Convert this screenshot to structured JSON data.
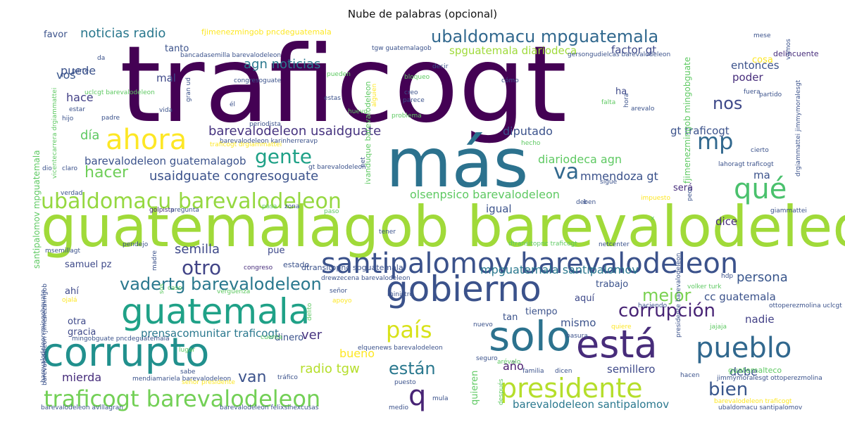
{
  "chart_data": {
    "type": "wordcloud",
    "title": "Nube de palabras (opcional)",
    "colormap": "viridis",
    "background": "#ffffff",
    "words": [
      {
        "text": "traficogt",
        "weight": 1.0,
        "color": "#440154"
      },
      {
        "text": "más",
        "weight": 0.62,
        "color": "#2c728e"
      },
      {
        "text": "guatemalagob barevalodeleon",
        "weight": 0.55,
        "color": "#a0da39"
      },
      {
        "text": "gobierno",
        "weight": 0.38,
        "color": "#3b528b"
      },
      {
        "text": "guatemala",
        "weight": 0.37,
        "color": "#1fa187"
      },
      {
        "text": "corrupto",
        "weight": 0.37,
        "color": "#21908d"
      },
      {
        "text": "solo",
        "weight": 0.37,
        "color": "#2c728e"
      },
      {
        "text": "está",
        "weight": 0.33,
        "color": "#472c7a"
      },
      {
        "text": "santipalomov barevalodeleon",
        "weight": 0.3,
        "color": "#3b528b"
      },
      {
        "text": "presidente",
        "weight": 0.3,
        "color": "#b5de2b"
      },
      {
        "text": "pueblo",
        "weight": 0.3,
        "color": "#31688e"
      },
      {
        "text": "ahora",
        "weight": 0.3,
        "color": "#fde725"
      },
      {
        "text": "traficogt barevalodeleon",
        "weight": 0.25,
        "color": "#73d056"
      },
      {
        "text": "mp",
        "weight": 0.25,
        "color": "#31688e"
      },
      {
        "text": "qué",
        "weight": 0.25,
        "color": "#4ac16d"
      },
      {
        "text": "país",
        "weight": 0.22,
        "color": "#d8e219"
      },
      {
        "text": "ubaldomacu barevalodeleon",
        "weight": 0.22,
        "color": "#95d840"
      },
      {
        "text": "va",
        "weight": 0.21,
        "color": "#31688e"
      },
      {
        "text": "gente",
        "weight": 0.21,
        "color": "#1fa187"
      },
      {
        "text": "q",
        "weight": 0.2,
        "color": "#482475"
      },
      {
        "text": "hacer",
        "weight": 0.18,
        "color": "#6ece58"
      },
      {
        "text": "corrupción",
        "weight": 0.18,
        "color": "#482475"
      },
      {
        "text": "están",
        "weight": 0.18,
        "color": "#2a788e"
      },
      {
        "text": "bien",
        "weight": 0.18,
        "color": "#39568c"
      },
      {
        "text": "ubaldomacu mpguatemala",
        "weight": 0.16,
        "color": "#31688e"
      },
      {
        "text": "otro",
        "weight": 0.16,
        "color": "#414487"
      },
      {
        "text": "vadertg barevalodeleon",
        "weight": 0.16,
        "color": "#2a788e"
      },
      {
        "text": "mejor",
        "weight": 0.16,
        "color": "#7ad151"
      },
      {
        "text": "nos",
        "weight": 0.16,
        "color": "#3e4989"
      },
      {
        "text": "usaidguate congresoguate",
        "weight": 0.13,
        "color": "#3b528b"
      },
      {
        "text": "barevalodeleon usaidguate",
        "weight": 0.13,
        "color": "#46337f"
      },
      {
        "text": "noticias radio",
        "weight": 0.12,
        "color": "#2a788e"
      },
      {
        "text": "agn noticias",
        "weight": 0.12,
        "color": "#2a788e"
      },
      {
        "text": "día",
        "weight": 0.12,
        "color": "#5ec962"
      },
      {
        "text": "semilla",
        "weight": 0.12,
        "color": "#3e4989"
      },
      {
        "text": "radio tgw",
        "weight": 0.12,
        "color": "#b5de2b"
      },
      {
        "text": "ver",
        "weight": 0.12,
        "color": "#46337f"
      },
      {
        "text": "van",
        "weight": 0.12,
        "color": "#3b528b"
      },
      {
        "text": "bueno",
        "weight": 0.1,
        "color": "#fde725"
      },
      {
        "text": "persona",
        "weight": 0.1,
        "color": "#39568c"
      },
      {
        "text": "mpguatemala santipalomov",
        "weight": 0.1,
        "color": "#2a788e"
      },
      {
        "text": "mierda",
        "weight": 0.1,
        "color": "#472d7b"
      },
      {
        "text": "vos",
        "weight": 0.1,
        "color": "#39568c"
      },
      {
        "text": "hace",
        "weight": 0.1,
        "color": "#424086"
      },
      {
        "text": "puede",
        "weight": 0.1,
        "color": "#3b528b"
      },
      {
        "text": "diputado",
        "weight": 0.09,
        "color": "#3b528b"
      },
      {
        "text": "diariodeca agn",
        "weight": 0.09,
        "color": "#5ec962"
      },
      {
        "text": "mmendoza gt",
        "weight": 0.09,
        "color": "#3b528b"
      },
      {
        "text": "olsenpsico barevalodeleon",
        "weight": 0.09,
        "color": "#5ec962"
      },
      {
        "text": "año",
        "weight": 0.09,
        "color": "#481b6d"
      },
      {
        "text": "debe",
        "weight": 0.09,
        "color": "#3b528b"
      },
      {
        "text": "prensacomunitar traficogt",
        "weight": 0.08,
        "color": "#2a788e"
      },
      {
        "text": "gt traficogt",
        "weight": 0.08,
        "color": "#3b528b"
      },
      {
        "text": "spguatemala diariodeca",
        "weight": 0.08,
        "color": "#9fda3a"
      },
      {
        "text": "factor gt",
        "weight": 0.08,
        "color": "#3e4989"
      },
      {
        "text": "mal",
        "weight": 0.08,
        "color": "#3e4989"
      },
      {
        "text": "cc guatemala",
        "weight": 0.08,
        "color": "#3b528b"
      },
      {
        "text": "mismo",
        "weight": 0.08,
        "color": "#3b528b"
      },
      {
        "text": "nadie",
        "weight": 0.07,
        "color": "#424086"
      },
      {
        "text": "semillero",
        "weight": 0.07,
        "color": "#3e4989"
      },
      {
        "text": "barevalodeleon guatemalagob",
        "weight": 0.07,
        "color": "#3b528b"
      },
      {
        "text": "barevalodeleon santipalomov",
        "weight": 0.07,
        "color": "#2a788e"
      },
      {
        "text": "ma",
        "weight": 0.07,
        "color": "#3b528b"
      },
      {
        "text": "dice",
        "weight": 0.07,
        "color": "#472d7b"
      },
      {
        "text": "igual",
        "weight": 0.07,
        "color": "#3b528b"
      },
      {
        "text": "poder",
        "weight": 0.07,
        "color": "#472d7b"
      },
      {
        "text": "entonces",
        "weight": 0.07,
        "color": "#3b528b"
      },
      {
        "text": "tanto",
        "weight": 0.07,
        "color": "#3b528b"
      },
      {
        "text": "favor",
        "weight": 0.07,
        "color": "#3b528b"
      },
      {
        "text": "gracia",
        "weight": 0.07,
        "color": "#3e4989"
      },
      {
        "text": "otra",
        "weight": 0.06,
        "color": "#3e4989"
      },
      {
        "text": "dinero",
        "weight": 0.06,
        "color": "#3b528b"
      },
      {
        "text": "será",
        "weight": 0.06,
        "color": "#472d7b"
      },
      {
        "text": "tan",
        "weight": 0.06,
        "color": "#3b528b"
      },
      {
        "text": "tiempo",
        "weight": 0.06,
        "color": "#3b528b"
      },
      {
        "text": "aquí",
        "weight": 0.06,
        "color": "#3e4989"
      },
      {
        "text": "trabajo",
        "weight": 0.06,
        "color": "#3b528b"
      },
      {
        "text": "samuel pz",
        "weight": 0.06,
        "color": "#3e4989"
      },
      {
        "text": "pue",
        "weight": 0.06,
        "color": "#3e4989"
      },
      {
        "text": "ha",
        "weight": 0.06,
        "color": "#3e4989"
      },
      {
        "text": "cosa",
        "weight": 0.06,
        "color": "#fde725"
      },
      {
        "text": "ahí",
        "weight": 0.06,
        "color": "#3e4989"
      },
      {
        "text": "guatemalteco",
        "weight": 0.05,
        "color": "#5ec962"
      },
      {
        "text": "fjimenezmingob pncdeguatemala",
        "weight": 0.05,
        "color": "#fde725"
      },
      {
        "text": "delincuente",
        "weight": 0.05,
        "color": "#472d7b"
      },
      {
        "text": "estado",
        "weight": 0.05,
        "color": "#3b528b"
      },
      {
        "text": "dtransitopnc spguatemala",
        "weight": 0.05,
        "color": "#3b528b"
      },
      {
        "text": "congreso",
        "weight": 0.04,
        "color": "#472d7b"
      },
      {
        "text": "elquenews barevalodeleon",
        "weight": 0.04,
        "color": "#3b528b"
      },
      {
        "text": "mingobguate pncdeguatemala",
        "weight": 0.04,
        "color": "#3b528b"
      },
      {
        "text": "barevalodeleon fjimenezmingob",
        "weight": 0.04,
        "color": "#3b528b"
      },
      {
        "text": "barevalodeleon mingobguate",
        "weight": 0.04,
        "color": "#3b528b"
      },
      {
        "text": "santipalomov mpguatemala",
        "weight": 0.04,
        "color": "#5ec962"
      },
      {
        "text": "presidente barevalodeleon",
        "weight": 0.04,
        "color": "#3b528b"
      },
      {
        "text": "fjimenezmingob mingobguate",
        "weight": 0.04,
        "color": "#5ec962"
      },
      {
        "text": "ivanduque barevalodeleon",
        "weight": 0.04,
        "color": "#5ec962"
      },
      {
        "text": "quieren",
        "weight": 0.04,
        "color": "#5ec962"
      },
      {
        "text": "mendiamariela barevalodeleon",
        "weight": 0.03,
        "color": "#3b528b"
      },
      {
        "text": "barevalodeleon avillagran",
        "weight": 0.03,
        "color": "#3b528b"
      },
      {
        "text": "barevalodeleon felixsinexcusas",
        "weight": 0.03,
        "color": "#3b528b"
      },
      {
        "text": "barevalodeleon karinherreravp",
        "weight": 0.03,
        "color": "#3b528b"
      },
      {
        "text": "bancadasemilla barevalodeleon",
        "weight": 0.03,
        "color": "#3b528b"
      },
      {
        "text": "gersongudielcas barevalodeleon",
        "weight": 0.03,
        "color": "#3b528b"
      },
      {
        "text": "tgw guatemalagob",
        "weight": 0.03,
        "color": "#3b528b"
      },
      {
        "text": "traficogt drgiammattei",
        "weight": 0.03,
        "color": "#fde725"
      },
      {
        "text": "barevalodeleon traficogt",
        "weight": 0.03,
        "color": "#fde725"
      },
      {
        "text": "ubaldomacu santipalomov",
        "weight": 0.03,
        "color": "#3b528b"
      },
      {
        "text": "ottoperezmolina uclcgt",
        "weight": 0.03,
        "color": "#3b528b"
      },
      {
        "text": "jimmymoralesgt ottoperezmolina",
        "weight": 0.03,
        "color": "#3b528b"
      },
      {
        "text": "lahoragt traficogt",
        "weight": 0.03,
        "color": "#3b528b"
      },
      {
        "text": "dtransitopnc traficogt",
        "weight": 0.03,
        "color": "#5ec962"
      },
      {
        "text": "drewzecena barevalodeleon",
        "weight": 0.03,
        "color": "#3b528b"
      },
      {
        "text": "gt barevalodeleon",
        "weight": 0.03,
        "color": "#3b528b"
      },
      {
        "text": "uclcgt barevalodeleon",
        "weight": 0.03,
        "color": "#5ec962"
      },
      {
        "text": "vicentecarrera drgiammattei",
        "weight": 0.03,
        "color": "#5ec962"
      },
      {
        "text": "drgiammattei jimmymoralesgt",
        "weight": 0.03,
        "color": "#3b528b"
      },
      {
        "text": "señor presidente",
        "weight": 0.03,
        "color": "#fde725"
      },
      {
        "text": "periodista",
        "weight": 0.03,
        "color": "#3b528b"
      },
      {
        "text": "congresoguate",
        "weight": 0.03,
        "color": "#3b528b"
      },
      {
        "text": "cómo",
        "weight": 0.03,
        "color": "#3b528b"
      },
      {
        "text": "gran ud",
        "weight": 0.03,
        "color": "#3b528b"
      },
      {
        "text": "msemillagt",
        "weight": 0.03,
        "color": "#3b528b"
      },
      {
        "text": "golpista",
        "weight": 0.03,
        "color": "#472d7b"
      },
      {
        "text": "pregunta",
        "weight": 0.03,
        "color": "#3b528b"
      },
      {
        "text": "verdad",
        "weight": 0.03,
        "color": "#3b528b"
      },
      {
        "text": "vergüenza",
        "weight": 0.03,
        "color": "#5ec962"
      },
      {
        "text": "ministro",
        "weight": 0.03,
        "color": "#3b528b"
      },
      {
        "text": "sigue",
        "weight": 0.03,
        "color": "#3b528b"
      },
      {
        "text": "cierto",
        "weight": 0.03,
        "color": "#3b528b"
      },
      {
        "text": "hecho",
        "weight": 0.03,
        "color": "#5ec962"
      },
      {
        "text": "fuera",
        "weight": 0.03,
        "color": "#3b528b"
      },
      {
        "text": "partido",
        "weight": 0.03,
        "color": "#3b528b"
      },
      {
        "text": "deben",
        "weight": 0.03,
        "color": "#3b528b"
      },
      {
        "text": "impuesto",
        "weight": 0.03,
        "color": "#fde725"
      },
      {
        "text": "peor",
        "weight": 0.03,
        "color": "#3b528b"
      },
      {
        "text": "netcenter",
        "weight": 0.03,
        "color": "#3b528b"
      },
      {
        "text": "giammattei",
        "weight": 0.03,
        "color": "#3b528b"
      },
      {
        "text": "hdp",
        "weight": 0.03,
        "color": "#3b528b"
      },
      {
        "text": "volker turk",
        "weight": 0.03,
        "color": "#5ec962"
      },
      {
        "text": "haciendo",
        "weight": 0.03,
        "color": "#3b528b"
      },
      {
        "text": "jajaja",
        "weight": 0.03,
        "color": "#5ec962"
      },
      {
        "text": "quiere",
        "weight": 0.03,
        "color": "#fde725"
      },
      {
        "text": "basura",
        "weight": 0.03,
        "color": "#3b528b"
      },
      {
        "text": "nuevo",
        "weight": 0.03,
        "color": "#3b528b"
      },
      {
        "text": "seguro",
        "weight": 0.03,
        "color": "#3b528b"
      },
      {
        "text": "familia",
        "weight": 0.03,
        "color": "#3b528b"
      },
      {
        "text": "dicen",
        "weight": 0.03,
        "color": "#3b528b"
      },
      {
        "text": "hacen",
        "weight": 0.03,
        "color": "#3b528b"
      },
      {
        "text": "sabe",
        "weight": 0.03,
        "color": "#3b528b"
      },
      {
        "text": "tráfico",
        "weight": 0.03,
        "color": "#3b528b"
      },
      {
        "text": "puesto",
        "weight": 0.03,
        "color": "#3b528b"
      },
      {
        "text": "mula",
        "weight": 0.03,
        "color": "#3b528b"
      },
      {
        "text": "medio",
        "weight": 0.03,
        "color": "#3b528b"
      },
      {
        "text": "después",
        "weight": 0.03,
        "color": "#5ec962"
      },
      {
        "text": "arévalo",
        "weight": 0.03,
        "color": "#5ec962"
      },
      {
        "text": "cuenta",
        "weight": 0.03,
        "color": "#5ec962"
      },
      {
        "text": "lugar",
        "weight": 0.03,
        "color": "#5ec962"
      },
      {
        "text": "apoyo",
        "weight": 0.03,
        "color": "#fde725"
      },
      {
        "text": "señor",
        "weight": 0.03,
        "color": "#3b528b"
      },
      {
        "text": "delito",
        "weight": 0.03,
        "color": "#5ec962"
      },
      {
        "text": "caso",
        "weight": 0.03,
        "color": "#5ec962"
      },
      {
        "text": "sos",
        "weight": 0.03,
        "color": "#5ec962"
      },
      {
        "text": "madre",
        "weight": 0.03,
        "color": "#3b528b"
      },
      {
        "text": "ojalá",
        "weight": 0.03,
        "color": "#fde725"
      },
      {
        "text": "pendejo",
        "weight": 0.03,
        "color": "#3b528b"
      },
      {
        "text": "tener",
        "weight": 0.03,
        "color": "#3b528b"
      },
      {
        "text": "pasa",
        "weight": 0.03,
        "color": "#5ec962"
      },
      {
        "text": "zona",
        "weight": 0.03,
        "color": "#3b528b"
      },
      {
        "text": "paso",
        "weight": 0.03,
        "color": "#5ec962"
      },
      {
        "text": "ir",
        "weight": 0.03,
        "color": "#3b528b"
      },
      {
        "text": "arevalo",
        "weight": 0.03,
        "color": "#3b528b"
      },
      {
        "text": "hora",
        "weight": 0.03,
        "color": "#3b528b"
      },
      {
        "text": "falta",
        "weight": 0.03,
        "color": "#5ec962"
      },
      {
        "text": "problema",
        "weight": 0.03,
        "color": "#5ec962"
      },
      {
        "text": "parece",
        "weight": 0.03,
        "color": "#3b528b"
      },
      {
        "text": "creo",
        "weight": 0.03,
        "color": "#3b528b"
      },
      {
        "text": "bloqueo",
        "weight": 0.03,
        "color": "#5ec962"
      },
      {
        "text": "decir",
        "weight": 0.03,
        "color": "#3b528b"
      },
      {
        "text": "estas",
        "weight": 0.03,
        "color": "#3b528b"
      },
      {
        "text": "pueden",
        "weight": 0.03,
        "color": "#5ec962"
      },
      {
        "text": "parte",
        "weight": 0.03,
        "color": "#3b528b"
      },
      {
        "text": "estar",
        "weight": 0.03,
        "color": "#3b528b"
      },
      {
        "text": "hijo",
        "weight": 0.03,
        "color": "#3b528b"
      },
      {
        "text": "padre",
        "weight": 0.03,
        "color": "#3b528b"
      },
      {
        "text": "vida",
        "weight": 0.03,
        "color": "#3b528b"
      },
      {
        "text": "él",
        "weight": 0.03,
        "color": "#3b528b"
      },
      {
        "text": "dio",
        "weight": 0.03,
        "color": "#3b528b"
      },
      {
        "text": "claro",
        "weight": 0.03,
        "color": "#3b528b"
      },
      {
        "text": "da",
        "weight": 0.03,
        "color": "#3b528b"
      },
      {
        "text": "mese",
        "weight": 0.03,
        "color": "#3b528b"
      },
      {
        "text": "vamos",
        "weight": 0.03,
        "color": "#3b528b"
      },
      {
        "text": "net",
        "weight": 0.03,
        "color": "#3b528b"
      },
      {
        "text": "alguien",
        "weight": 0.03,
        "color": "#fde725"
      },
      {
        "text": "huevo",
        "weight": 0.03,
        "color": "#5ec962"
      },
      {
        "text": "x",
        "weight": 0.03,
        "color": "#5ec962"
      },
      {
        "text": "e",
        "weight": 0.03,
        "color": "#3b528b"
      }
    ]
  }
}
